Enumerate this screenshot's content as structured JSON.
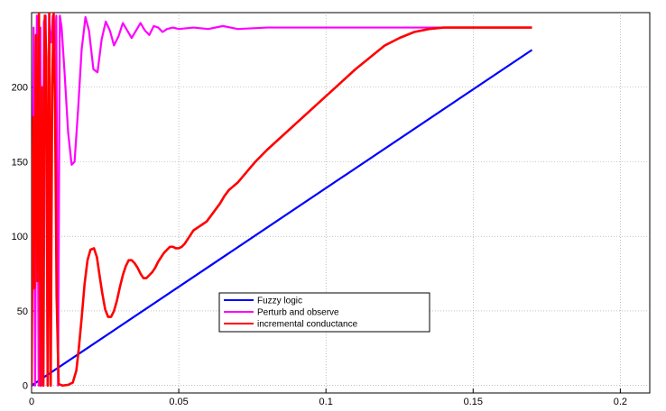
{
  "chart_data": {
    "type": "line",
    "title": "",
    "xlabel": "",
    "ylabel": "",
    "xlim": [
      0,
      0.21
    ],
    "ylim": [
      -5,
      250
    ],
    "grid": true,
    "legend_position": "center",
    "x_ticks": [
      0,
      0.05,
      0.1,
      0.15,
      0.2
    ],
    "x_tick_labels": [
      "0",
      "0.05",
      "0.1",
      "0.15",
      "0.2"
    ],
    "y_ticks": [
      0,
      50,
      100,
      150,
      200
    ],
    "y_tick_labels": [
      "0",
      "50",
      "100",
      "150",
      "200"
    ],
    "series": [
      {
        "name": "Fuzzy logic",
        "color": "#0000ff",
        "x": [
          0,
          0.17
        ],
        "y": [
          0,
          225
        ]
      },
      {
        "name": "Perturb and observe",
        "color": "#ff00ff",
        "x": [
          0,
          0.0007,
          0.0012,
          0.0018,
          0.0024,
          0.003,
          0.0036,
          0.0042,
          0.0048,
          0.0054,
          0.006,
          0.0066,
          0.0072,
          0.0078,
          0.0084,
          0.009,
          0.0096,
          0.0102,
          0.0112,
          0.0124,
          0.0136,
          0.0146,
          0.0158,
          0.017,
          0.0183,
          0.0195,
          0.021,
          0.0224,
          0.0238,
          0.0252,
          0.0266,
          0.028,
          0.0295,
          0.031,
          0.0325,
          0.034,
          0.0355,
          0.037,
          0.0385,
          0.04,
          0.0415,
          0.043,
          0.0445,
          0.046,
          0.048,
          0.05,
          0.055,
          0.06,
          0.065,
          0.07,
          0.08,
          0.09,
          0.1,
          0.12,
          0.14,
          0.16,
          0.17
        ],
        "y": [
          0,
          240,
          0,
          248,
          0,
          240,
          0,
          244,
          248,
          0,
          240,
          230,
          248,
          225,
          248,
          0,
          248,
          240,
          210,
          170,
          148,
          150,
          185,
          225,
          247,
          238,
          212,
          210,
          232,
          244,
          238,
          228,
          234,
          243,
          238,
          233,
          238,
          243,
          238,
          235,
          241,
          240,
          237,
          239,
          240,
          239,
          240,
          239,
          241,
          239,
          240,
          240,
          240,
          240,
          240,
          240,
          240
        ]
      },
      {
        "name": "incremental conductance",
        "color": "#ff0000",
        "x": [
          0,
          0.0005,
          0.001,
          0.0015,
          0.002,
          0.0025,
          0.003,
          0.0035,
          0.004,
          0.0045,
          0.005,
          0.0055,
          0.006,
          0.0065,
          0.007,
          0.0075,
          0.008,
          0.0085,
          0.0092,
          0.0105,
          0.0125,
          0.014,
          0.0152,
          0.016,
          0.017,
          0.018,
          0.019,
          0.02,
          0.0212,
          0.0222,
          0.023,
          0.024,
          0.025,
          0.026,
          0.027,
          0.028,
          0.029,
          0.03,
          0.031,
          0.032,
          0.033,
          0.034,
          0.035,
          0.036,
          0.037,
          0.038,
          0.039,
          0.04,
          0.041,
          0.042,
          0.043,
          0.044,
          0.045,
          0.046,
          0.047,
          0.048,
          0.049,
          0.05,
          0.051,
          0.052,
          0.053,
          0.054,
          0.055,
          0.0565,
          0.058,
          0.0595,
          0.061,
          0.0625,
          0.064,
          0.0655,
          0.067,
          0.07,
          0.073,
          0.076,
          0.08,
          0.085,
          0.09,
          0.095,
          0.1,
          0.105,
          0.11,
          0.115,
          0.12,
          0.125,
          0.13,
          0.135,
          0.14,
          0.145,
          0.15,
          0.155,
          0.16,
          0.165,
          0.17
        ],
        "y": [
          0,
          180,
          65,
          235,
          70,
          250,
          0,
          200,
          0,
          248,
          220,
          0,
          250,
          0,
          200,
          250,
          180,
          60,
          1,
          0,
          0.5,
          2,
          10,
          24,
          45,
          68,
          84,
          91,
          92,
          86,
          75,
          62,
          51,
          46,
          46,
          50,
          57,
          66,
          74,
          80,
          84,
          84,
          82,
          79,
          75,
          72,
          72,
          74,
          76,
          79,
          83,
          86,
          89,
          91,
          93,
          93,
          92,
          92,
          93,
          95,
          98,
          101,
          104,
          106,
          108,
          110,
          114,
          118,
          122,
          127,
          131,
          136,
          143,
          150,
          158,
          167,
          176,
          185,
          194,
          203,
          212,
          220,
          228,
          233,
          237,
          239,
          240,
          240,
          240,
          240,
          240,
          240,
          240
        ]
      }
    ]
  }
}
